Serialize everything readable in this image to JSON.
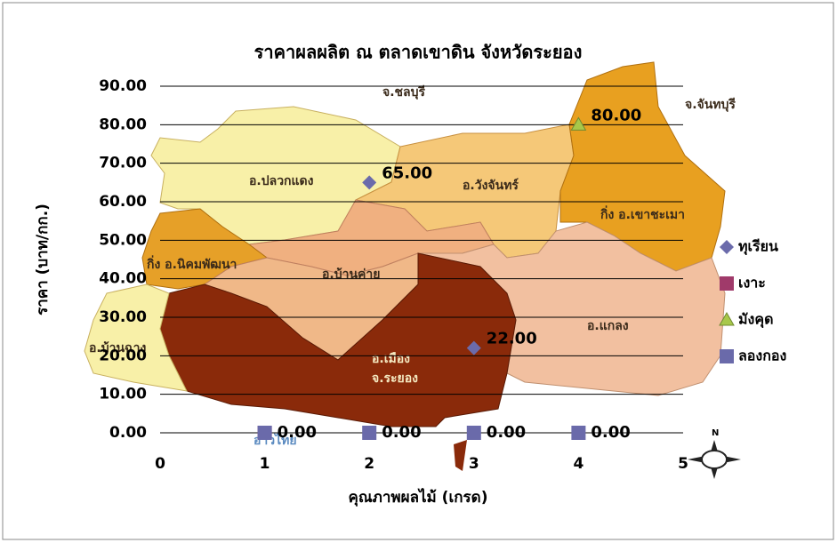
{
  "chart_data": {
    "type": "scatter",
    "title": "ราคาผลผลิต ณ ตลาดเขาดิน  จังหวัดระยอง",
    "xlabel": "คุณภาพผลไม้ (เกรด)",
    "ylabel": "ราคา (บาท/กก.)",
    "xlim": [
      0,
      5
    ],
    "ylim": [
      0,
      90
    ],
    "xticks": [
      0,
      1,
      2,
      3,
      4,
      5
    ],
    "yticks": [
      {
        "value": 0,
        "label": "0.00"
      },
      {
        "value": 10,
        "label": "10.00"
      },
      {
        "value": 20,
        "label": "20.00"
      },
      {
        "value": 30,
        "label": "30.00"
      },
      {
        "value": 40,
        "label": "40.00"
      },
      {
        "value": 50,
        "label": "50.00"
      },
      {
        "value": 60,
        "label": "60.00"
      },
      {
        "value": 70,
        "label": "70.00"
      },
      {
        "value": 80,
        "label": "80.00"
      },
      {
        "value": 90,
        "label": "90.00"
      }
    ],
    "grid": true,
    "legend": "right",
    "series": [
      {
        "name": "ทุเรียน",
        "color": "#6b6bab",
        "marker": "diamond",
        "x": [
          2,
          3
        ],
        "values": [
          65,
          22
        ],
        "value_labels": [
          "65.00",
          "22.00"
        ]
      },
      {
        "name": "เงาะ",
        "color": "#a03a6a",
        "marker": "square",
        "x": [
          1
        ],
        "values": [
          0
        ]
      },
      {
        "name": "มังคุด",
        "color": "#a8c84a",
        "marker": "triangle",
        "x": [
          4
        ],
        "values": [
          80
        ],
        "value_labels": [
          "80.00"
        ]
      },
      {
        "name": "ลองกอง",
        "color": "#6a6aaa",
        "marker": "square",
        "x": [
          1,
          2,
          3,
          4
        ],
        "values": [
          0,
          0,
          0,
          0
        ],
        "value_labels": [
          "0.00",
          "0.00",
          "0.00",
          "0.00"
        ]
      }
    ],
    "annotations": [
      "จ.ชลบุรี",
      "จ.จันทบุรี",
      "อ.ปลวกแดง",
      "อ.วังจันทร์",
      "กิ่ง อ.เขาชะเมา",
      "กิ่ง อ.นิคมพัฒนา",
      "อ.บ้านค่าย",
      "อ.แกลง",
      "อ.เมือง",
      "จ.ระยอง",
      "อ.บ้านฉาง",
      "อ่าวไทย"
    ]
  }
}
